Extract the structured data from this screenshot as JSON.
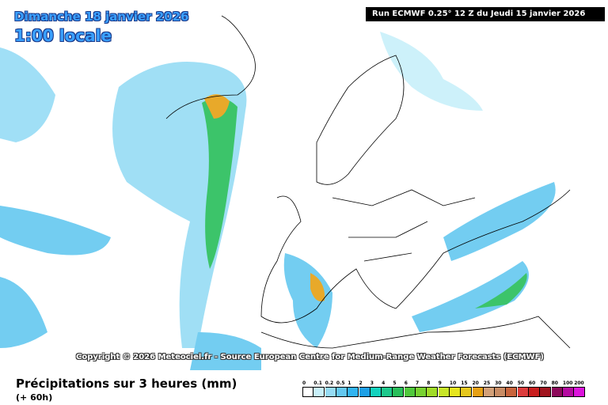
{
  "header": {
    "date": "Dimanche 18 janvier 2026",
    "time": "1:00 locale",
    "run": "Run ECMWF 0.25° 12 Z du Jeudi 15 janvier 2026"
  },
  "copyright": "Copyright © 2026 Meteociel.fr - Source European Centre for Medium-Range Weather Forecasts (ECMWF)",
  "footer": {
    "title": "Précipitations sur 3 heures (mm)",
    "subtitle": "(+ 60h)"
  },
  "legend": [
    {
      "label": "0",
      "color": "#ffffff"
    },
    {
      "label": "0.1",
      "color": "#c8f0fa"
    },
    {
      "label": "0.2",
      "color": "#96dcf5"
    },
    {
      "label": "0.5",
      "color": "#64c8f0"
    },
    {
      "label": "1",
      "color": "#32b4f0"
    },
    {
      "label": "2",
      "color": "#1ea0e6"
    },
    {
      "label": "3",
      "color": "#14d2be"
    },
    {
      "label": "4",
      "color": "#1ec88c"
    },
    {
      "label": "5",
      "color": "#28be5a"
    },
    {
      "label": "6",
      "color": "#50c83c"
    },
    {
      "label": "7",
      "color": "#78d232"
    },
    {
      "label": "8",
      "color": "#a0dc28"
    },
    {
      "label": "9",
      "color": "#c8e628"
    },
    {
      "label": "10",
      "color": "#e6e61e"
    },
    {
      "label": "15",
      "color": "#e6c81e"
    },
    {
      "label": "20",
      "color": "#e6a014"
    },
    {
      "label": "25",
      "color": "#d2a078"
    },
    {
      "label": "30",
      "color": "#c88c64"
    },
    {
      "label": "40",
      "color": "#c8643c"
    },
    {
      "label": "50",
      "color": "#dc3c3c"
    },
    {
      "label": "60",
      "color": "#c81e1e"
    },
    {
      "label": "70",
      "color": "#a0141e"
    },
    {
      "label": "80",
      "color": "#8c0a5a"
    },
    {
      "label": "100",
      "color": "#b40aa0"
    },
    {
      "label": "200",
      "color": "#dc14dc"
    }
  ]
}
